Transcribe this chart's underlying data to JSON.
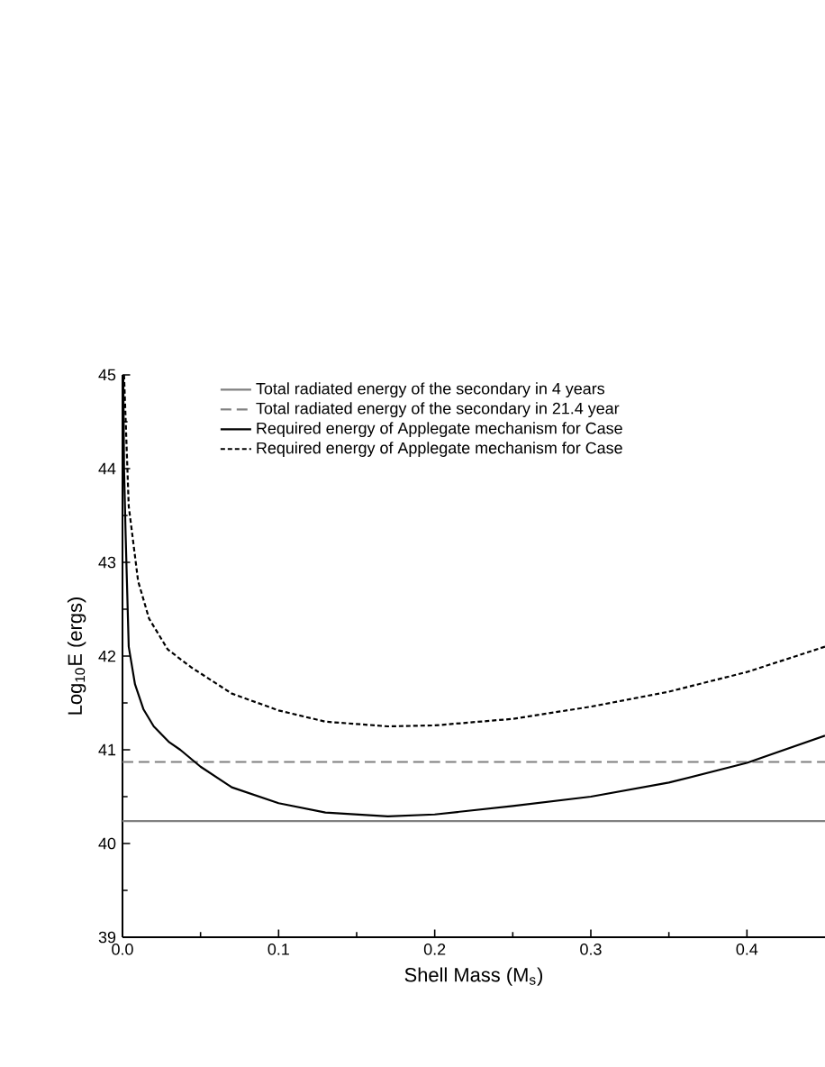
{
  "chart_data": {
    "type": "line",
    "xlabel": "Shell Mass (M$_{s}$)",
    "ylabel": "Log$_{10}$E (ergs)",
    "xlim": [
      0,
      0.45
    ],
    "ylim": [
      39,
      45
    ],
    "xticks": [
      {
        "value": 0,
        "label": "0.0"
      },
      {
        "value": 0.1,
        "label": "0.1"
      },
      {
        "value": 0.2,
        "label": "0.2"
      },
      {
        "value": 0.3,
        "label": "0.3"
      },
      {
        "value": 0.4,
        "label": "0.4"
      }
    ],
    "yticks": [
      39,
      40,
      41,
      42,
      43,
      44,
      45
    ],
    "legend": "top",
    "grid": false,
    "marker": "none",
    "series": [
      {
        "name": "Total radiated energy of the secondary in 4 years",
        "color": "#808080",
        "line_style": "solid",
        "x": [
          0,
          0.45
        ],
        "values": [
          40.24,
          40.24
        ]
      },
      {
        "name": "Total radiated energy of the secondary in 21.4 year",
        "color": "#808080",
        "line_style": "dashed",
        "x": [
          0,
          0.45
        ],
        "values": [
          40.87,
          40.87
        ]
      },
      {
        "name": "Required energy of Applegate mechanism for Case",
        "color": "#000000",
        "line_style": "solid",
        "x": [
          0.0005,
          0.001,
          0.002,
          0.004,
          0.008,
          0.0135,
          0.02,
          0.03,
          0.037,
          0.05,
          0.07,
          0.1,
          0.13,
          0.17,
          0.2,
          0.25,
          0.3,
          0.35,
          0.4,
          0.45
        ],
        "values": [
          45,
          44,
          43.3,
          42.1,
          41.7,
          41.43,
          41.25,
          41.08,
          41.0,
          40.82,
          40.6,
          40.43,
          40.33,
          40.29,
          40.31,
          40.4,
          40.5,
          40.65,
          40.86,
          41.15
        ]
      },
      {
        "name": "Required energy of Applegate mechanism for Case",
        "color": "#000000",
        "line_style": "dotted",
        "x": [
          0.001,
          0.004,
          0.01,
          0.017,
          0.029,
          0.044,
          0.07,
          0.1,
          0.13,
          0.17,
          0.2,
          0.25,
          0.3,
          0.35,
          0.4,
          0.45
        ],
        "values": [
          45,
          43.6,
          42.8,
          42.4,
          42.07,
          41.88,
          41.6,
          41.42,
          41.3,
          41.25,
          41.26,
          41.33,
          41.46,
          41.62,
          41.83,
          42.1
        ]
      }
    ]
  }
}
